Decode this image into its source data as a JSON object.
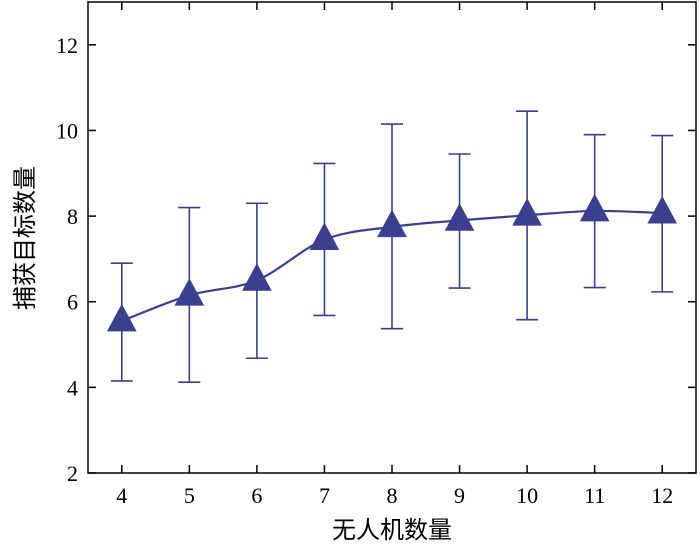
{
  "chart_data": {
    "type": "line",
    "xlabel": "无人机数量",
    "ylabel": "捕获目标数量",
    "x": [
      4,
      5,
      6,
      7,
      8,
      9,
      10,
      11,
      12
    ],
    "xlim": [
      3.5,
      12.5
    ],
    "ylim": [
      2,
      13
    ],
    "xticks": [
      "4",
      "5",
      "6",
      "7",
      "8",
      "9",
      "10",
      "11",
      "12"
    ],
    "yticks": [
      "2",
      "4",
      "6",
      "8",
      "10",
      "12"
    ],
    "grid": false,
    "series": [
      {
        "marker": "triangle",
        "color": "#3a3f8f",
        "values": [
          5.55,
          6.15,
          6.5,
          7.45,
          7.75,
          7.9,
          8.02,
          8.12,
          8.07
        ],
        "error_low": [
          4.15,
          4.12,
          4.68,
          5.68,
          5.37,
          6.32,
          5.58,
          6.33,
          6.23
        ],
        "error_high": [
          6.9,
          8.2,
          8.3,
          9.23,
          10.15,
          9.45,
          10.45,
          9.9,
          9.88
        ]
      }
    ]
  }
}
